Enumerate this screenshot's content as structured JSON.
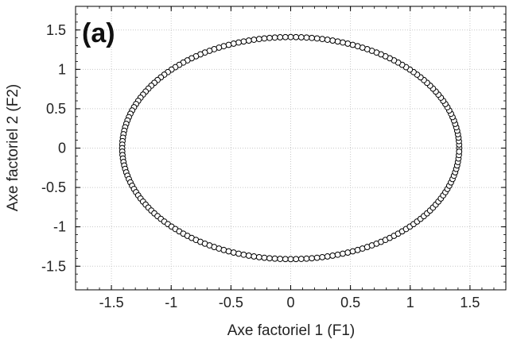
{
  "chart_data": {
    "type": "scatter",
    "panel_label": "(a)",
    "xlabel": "Axe factoriel 1 (F1)",
    "ylabel": "Axe factoriel 2 (F2)",
    "xlim": [
      -1.8,
      1.8
    ],
    "ylim": [
      -1.8,
      1.8
    ],
    "x_ticks": [
      -1.5,
      -1,
      -0.5,
      0,
      0.5,
      1,
      1.5
    ],
    "x_tick_labels": [
      "-1.5",
      "-1",
      "-0.5",
      "0",
      "0.5",
      "1",
      "1.5"
    ],
    "y_ticks": [
      -1.5,
      -1,
      -0.5,
      0,
      0.5,
      1,
      1.5
    ],
    "y_tick_labels": [
      "-1.5",
      "-1",
      "-0.5",
      "0",
      "0.5",
      "1",
      "1.5"
    ],
    "grid": true,
    "series": [
      {
        "shape": "ellipse",
        "center": [
          0,
          0
        ],
        "radius_x": 1.41,
        "radius_y": 1.41,
        "point_count": 200,
        "marker": "open-circle",
        "marker_color": "#000000"
      }
    ]
  },
  "colors": {
    "grid": "#c8c8c8",
    "axis": "#000000",
    "marker_fill": "#ffffff",
    "marker_stroke": "#000000",
    "text": "#222222"
  }
}
